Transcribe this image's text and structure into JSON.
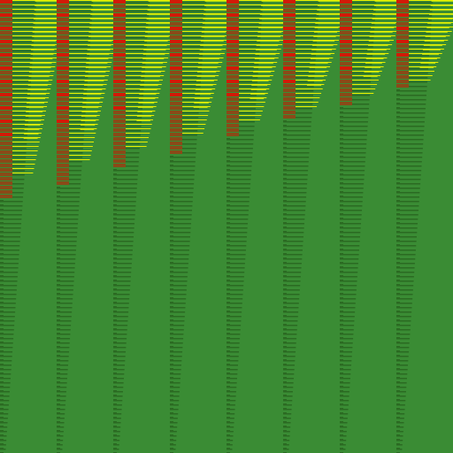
{
  "colors": {
    "background": "#3a8c34",
    "dark_green": "#2b6a22",
    "mid_green": "#3e8e2c",
    "yellow": "#e8f000",
    "yellow_green": "#b8e010",
    "red": "#d21a08",
    "brown": "#8a4a18"
  },
  "pattern": {
    "columns": 8,
    "description_visible": false
  }
}
